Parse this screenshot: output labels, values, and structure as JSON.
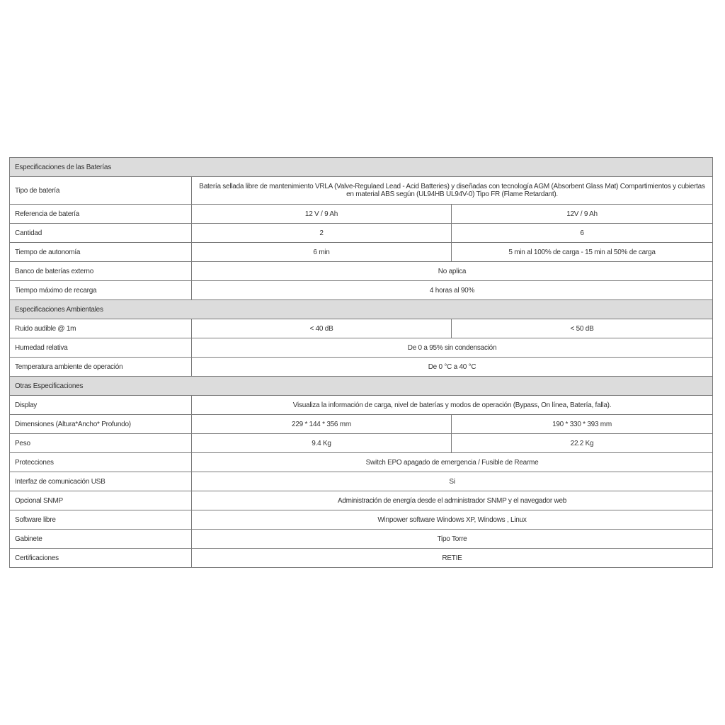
{
  "sections": [
    {
      "title": "Especificaciones de las Baterías",
      "rows": [
        {
          "label": "Tipo de batería",
          "values": [
            "Batería sellada libre de mantenimiento VRLA (Valve-Regulaed Lead - Acid Batteries) y diseñadas con tecnología AGM (Absorbent Glass Mat) Compartimientos y cubiertas en material ABS según (UL94HB UL94V-0) Tipo FR (Flame Retardant)."
          ]
        },
        {
          "label": "Referencia de batería",
          "values": [
            "12 V / 9 Ah",
            "12V / 9 Ah"
          ]
        },
        {
          "label": "Cantidad",
          "values": [
            "2",
            "6"
          ]
        },
        {
          "label": "Tiempo de autonomía",
          "values": [
            "6 min",
            "5 min al 100% de carga - 15 min al 50% de carga"
          ]
        },
        {
          "label": "Banco de baterías externo",
          "values": [
            "No aplica"
          ]
        },
        {
          "label": "Tiempo máximo de recarga",
          "values": [
            "4 horas al 90%"
          ]
        }
      ]
    },
    {
      "title": "Especificaciones Ambientales",
      "rows": [
        {
          "label": "Ruido audible @ 1m",
          "values": [
            "< 40 dB",
            "< 50 dB"
          ]
        },
        {
          "label": "Humedad relativa",
          "values": [
            "De 0 a 95% sin condensación"
          ]
        },
        {
          "label": "Temperatura ambiente de operación",
          "values": [
            "De 0 °C a 40 °C"
          ]
        }
      ]
    },
    {
      "title": "Otras Especificaciones",
      "rows": [
        {
          "label": "Display",
          "values": [
            "Visualiza la información de carga, nivel de baterías y modos de operación (Bypass, On línea, Batería, falla)."
          ]
        },
        {
          "label": "Dimensiones (Altura*Ancho* Profundo)",
          "values": [
            "229 * 144 * 356 mm",
            "190 * 330 * 393 mm"
          ]
        },
        {
          "label": "Peso",
          "values": [
            "9.4 Kg",
            "22.2 Kg"
          ]
        },
        {
          "label": "Protecciones",
          "values": [
            "Switch EPO apagado de emergencia / Fusible de Rearme"
          ]
        },
        {
          "label": "Interfaz de comunicación USB",
          "values": [
            "Si"
          ]
        },
        {
          "label": "Opcional SNMP",
          "values": [
            "Administración de energía desde el administrador SNMP y el navegador web"
          ]
        },
        {
          "label": "Software libre",
          "values": [
            "Winpower software Windows XP, Windows , Linux"
          ]
        },
        {
          "label": "Gabinete",
          "values": [
            "Tipo Torre"
          ]
        },
        {
          "label": "Certificaciones",
          "values": [
            "RETIE"
          ]
        }
      ]
    }
  ]
}
